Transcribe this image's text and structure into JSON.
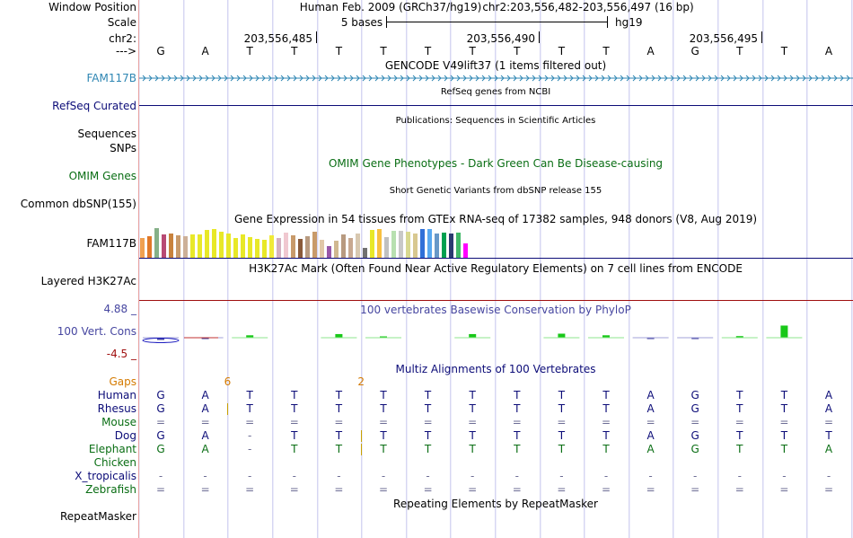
{
  "position": {
    "label": "Window Position",
    "assembly": "Human Feb. 2009 (GRCh37/hg19)",
    "region": "chr2:203,556,482-203,556,497 (16 bp)"
  },
  "scale": {
    "label": "Scale",
    "text": "5 bases",
    "assembly_tag": "hg19"
  },
  "ruler": {
    "label": "chr2:",
    "ticks": [
      {
        "text": "203,556,485",
        "col": 3
      },
      {
        "text": "203,556,490",
        "col": 8
      },
      {
        "text": "203,556,495",
        "col": 13
      }
    ]
  },
  "strand": {
    "label": "--->"
  },
  "sequence": [
    "G",
    "A",
    "T",
    "T",
    "T",
    "T",
    "T",
    "T",
    "T",
    "T",
    "T",
    "A",
    "G",
    "T",
    "T",
    "A"
  ],
  "tracks": {
    "gencode": {
      "title": "GENCODE V49lift37 (1 items filtered out)",
      "label": "FAM117B",
      "color": "#2e86b3"
    },
    "refseq": {
      "title": "RefSeq genes from NCBI",
      "label": "RefSeq Curated",
      "color": "#0c0c78"
    },
    "publications": {
      "title": "Publications: Sequences in Scientific Articles",
      "label_a": "Sequences",
      "label_b": "SNPs"
    },
    "omim": {
      "title": "OMIM Gene Phenotypes - Dark Green Can Be Disease-causing",
      "label": "OMIM Genes",
      "color": "#0a6e14"
    },
    "dbsnp": {
      "title": "Short Genetic Variants from dbSNP release 155",
      "label": "Common dbSNP(155)"
    },
    "gtex": {
      "title": "Gene Expression in 54 tissues from GTEx RNA-seq of 17382 samples, 948 donors (V8, Aug 2019)",
      "label": "FAM117B",
      "bars": [
        {
          "v": 0.62,
          "c": "#f0a050"
        },
        {
          "v": 0.66,
          "c": "#e07828"
        },
        {
          "v": 0.92,
          "c": "#86b088"
        },
        {
          "v": 0.72,
          "c": "#b84a74"
        },
        {
          "v": 0.74,
          "c": "#c8823c"
        },
        {
          "v": 0.7,
          "c": "#c89a6a"
        },
        {
          "v": 0.66,
          "c": "#cdb098"
        },
        {
          "v": 0.72,
          "c": "#e8e828"
        },
        {
          "v": 0.72,
          "c": "#e8e828"
        },
        {
          "v": 0.86,
          "c": "#e8e828"
        },
        {
          "v": 0.9,
          "c": "#e8e828"
        },
        {
          "v": 0.8,
          "c": "#e8e828"
        },
        {
          "v": 0.76,
          "c": "#e8e828"
        },
        {
          "v": 0.6,
          "c": "#e8e828"
        },
        {
          "v": 0.72,
          "c": "#e8e828"
        },
        {
          "v": 0.64,
          "c": "#e8e828"
        },
        {
          "v": 0.58,
          "c": "#e8e828"
        },
        {
          "v": 0.56,
          "c": "#e8e828"
        },
        {
          "v": 0.7,
          "c": "#f0ea38"
        },
        {
          "v": 0.6,
          "c": "#d4b0c0"
        },
        {
          "v": 0.78,
          "c": "#f0c8d0"
        },
        {
          "v": 0.7,
          "c": "#c89a6a"
        },
        {
          "v": 0.58,
          "c": "#8a5a3a"
        },
        {
          "v": 0.66,
          "c": "#b89a80"
        },
        {
          "v": 0.8,
          "c": "#c89a6a"
        },
        {
          "v": 0.56,
          "c": "#e0c8a8"
        },
        {
          "v": 0.36,
          "c": "#9858a8"
        },
        {
          "v": 0.54,
          "c": "#d0b890"
        },
        {
          "v": 0.72,
          "c": "#b89a80"
        },
        {
          "v": 0.62,
          "c": "#c8a890"
        },
        {
          "v": 0.74,
          "c": "#d8c8b0"
        },
        {
          "v": 0.3,
          "c": "#707070"
        },
        {
          "v": 0.86,
          "c": "#e8e828"
        },
        {
          "v": 0.88,
          "c": "#f8c040"
        },
        {
          "v": 0.64,
          "c": "#c0c0c0"
        },
        {
          "v": 0.84,
          "c": "#b8e0b0"
        },
        {
          "v": 0.84,
          "c": "#c8c8c8"
        },
        {
          "v": 0.8,
          "c": "#d8d890"
        },
        {
          "v": 0.76,
          "c": "#d8c890"
        },
        {
          "v": 0.9,
          "c": "#3070d8"
        },
        {
          "v": 0.9,
          "c": "#58a8f0"
        },
        {
          "v": 0.76,
          "c": "#6898c8"
        },
        {
          "v": 0.78,
          "c": "#00a050"
        },
        {
          "v": 0.74,
          "c": "#2a3a70"
        },
        {
          "v": 0.78,
          "c": "#40b868"
        },
        {
          "v": 0.44,
          "c": "#ff00ff"
        }
      ]
    },
    "h3k27ac": {
      "title": "H3K27Ac Mark (Often Found Near Active Regulatory Elements) on 7 cell lines from ENCODE",
      "label": "Layered H3K27Ac"
    },
    "cons": {
      "title": "100 vertebrates Basewise Conservation by PhyloP",
      "label": "100 Vert. Cons",
      "max_text": "4.88 _",
      "min_text": "-4.5 _",
      "max": 4.88,
      "min": -4.5,
      "color": "#4646a0",
      "scores": [
        -0.8,
        -0.2,
        0.6,
        null,
        0.9,
        0.3,
        null,
        0.9,
        null,
        1.0,
        0.6,
        -0.3,
        -0.2,
        0.4,
        3.0,
        null
      ]
    },
    "multiz": {
      "title": "Multiz Alignments of 100 Vertebrates",
      "gaps": {
        "label": "Gaps",
        "color": "#d47a00",
        "markers": [
          {
            "text": "6",
            "after_col": 1
          },
          {
            "text": "2",
            "after_col": 4
          }
        ]
      },
      "species": [
        {
          "name": "Human",
          "color": "#0c0c78",
          "bases": [
            "G",
            "A",
            "T",
            "T",
            "T",
            "T",
            "T",
            "T",
            "T",
            "T",
            "T",
            "A",
            "G",
            "T",
            "T",
            "A"
          ]
        },
        {
          "name": "Rhesus",
          "color": "#0c0c78",
          "bases": [
            "G",
            "A",
            "T",
            "T",
            "T",
            "T",
            "T",
            "T",
            "T",
            "T",
            "T",
            "A",
            "G",
            "T",
            "T",
            "A"
          ]
        },
        {
          "name": "Mouse",
          "color": "#0a6e14",
          "bases": [
            "=",
            "=",
            "=",
            "=",
            "=",
            "=",
            "=",
            "=",
            "=",
            "=",
            "=",
            "=",
            "=",
            "=",
            "=",
            "="
          ]
        },
        {
          "name": "Dog",
          "color": "#0c0c78",
          "bases": [
            "G",
            "A",
            "-",
            "T",
            "T",
            "T",
            "T",
            "T",
            "T",
            "T",
            "T",
            "A",
            "G",
            "T",
            "T",
            "T"
          ]
        },
        {
          "name": "Elephant",
          "color": "#0a6e14",
          "bases": [
            "G",
            "A",
            "-",
            "T",
            "T",
            "T",
            "T",
            "T",
            "T",
            "T",
            "T",
            "A",
            "G",
            "T",
            "T",
            "A"
          ]
        },
        {
          "name": "Chicken",
          "color": "#0a6e14",
          "bases": [
            "",
            "",
            "",
            "",
            "",
            "",
            "",
            "",
            "",
            "",
            "",
            "",
            "",
            "",
            "",
            ""
          ]
        },
        {
          "name": "X_tropicalis",
          "color": "#0c0c78",
          "bases": [
            "-",
            "-",
            "-",
            "-",
            "-",
            "-",
            "-",
            "-",
            "-",
            "-",
            "-",
            "-",
            "-",
            "-",
            "-",
            "-"
          ]
        },
        {
          "name": "Zebrafish",
          "color": "#0a6e14",
          "bases": [
            "=",
            "=",
            "=",
            "=",
            "=",
            "=",
            "=",
            "=",
            "=",
            "=",
            "=",
            "=",
            "=",
            "=",
            "=",
            "="
          ]
        }
      ],
      "insertions": [
        {
          "species": "Rhesus",
          "after_col": 1
        },
        {
          "species": "Dog",
          "after_col": 4
        },
        {
          "species": "Elephant",
          "after_col": 4
        }
      ]
    },
    "repeatmasker": {
      "title": "Repeating Elements by RepeatMasker",
      "label": "RepeatMasker"
    }
  }
}
